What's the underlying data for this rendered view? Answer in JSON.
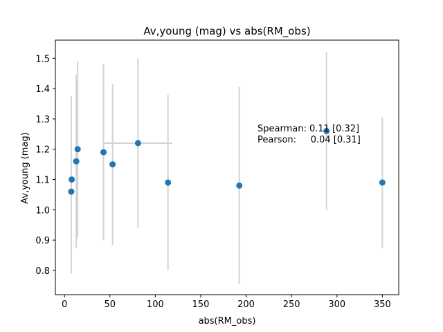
{
  "chart_data": {
    "type": "scatter",
    "title": "Av,young (mag) vs abs(RM_obs)",
    "xlabel": "abs(RM_obs)",
    "ylabel": "Av,young (mag)",
    "xlim": [
      -10,
      368
    ],
    "ylim": [
      0.72,
      1.56
    ],
    "xticks": [
      0,
      50,
      100,
      150,
      200,
      250,
      300,
      350
    ],
    "yticks": [
      0.8,
      0.9,
      1.0,
      1.1,
      1.2,
      1.3,
      1.4,
      1.5
    ],
    "ytick_labels": [
      "0.8",
      "0.9",
      "1.0",
      "1.1",
      "1.2",
      "1.3",
      "1.4",
      "1.5"
    ],
    "grid": false,
    "marker_color": "#1f77b4",
    "errorbar_color": "#d3d3d3",
    "points": [
      {
        "x": 7.5,
        "y": 1.06,
        "yerr_low": 0.27,
        "yerr_high": 0.315
      },
      {
        "x": 8,
        "y": 1.1,
        "yerr_low": null,
        "yerr_high": null
      },
      {
        "x": 13,
        "y": 1.16,
        "yerr_low": 0.285,
        "yerr_high": 0.285
      },
      {
        "x": 14.5,
        "y": 1.2,
        "yerr_low": 0.29,
        "yerr_high": 0.29
      },
      {
        "x": 43,
        "y": 1.19,
        "yerr_low": 0.29,
        "yerr_high": 0.29
      },
      {
        "x": 53,
        "y": 1.15,
        "yerr_low": 0.265,
        "yerr_high": 0.265
      },
      {
        "x": 81,
        "y": 1.22,
        "yerr_low": 0.28,
        "yerr_high": 0.28,
        "xerr_low": 38,
        "xerr_high": 38
      },
      {
        "x": 114,
        "y": 1.09,
        "yerr_low": 0.29,
        "yerr_high": 0.29
      },
      {
        "x": 192.5,
        "y": 1.08,
        "yerr_low": 0.325,
        "yerr_high": 0.325
      },
      {
        "x": 288.5,
        "y": 1.26,
        "yerr_low": 0.26,
        "yerr_high": 0.26
      },
      {
        "x": 350,
        "y": 1.09,
        "yerr_low": 0.215,
        "yerr_high": 0.215
      }
    ],
    "annotation": {
      "line1": "Spearman: 0.11 [0.32]",
      "line2": "Pearson:     0.04 [0.31]"
    }
  }
}
